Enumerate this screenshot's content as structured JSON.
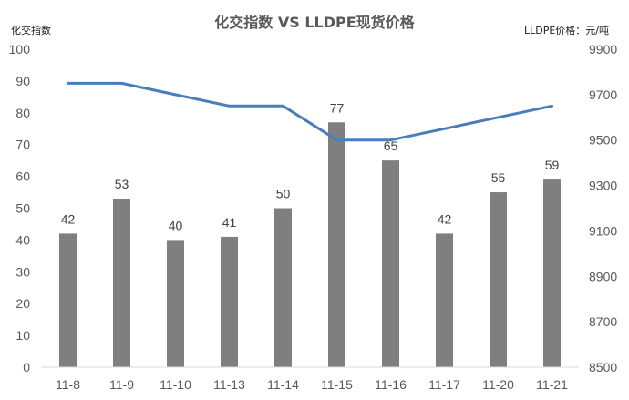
{
  "chart_data": {
    "type": "bar",
    "title": "化交指数 VS LLDPE现货价格",
    "y_left_label": "化交指数",
    "y_right_label": "LLDPE价格：元/吨",
    "categories": [
      "11-8",
      "11-9",
      "11-10",
      "11-13",
      "11-14",
      "11-15",
      "11-16",
      "11-17",
      "11-20",
      "11-21"
    ],
    "y_left_ticks": [
      "0",
      "10",
      "20",
      "30",
      "40",
      "50",
      "60",
      "70",
      "80",
      "90",
      "100"
    ],
    "y_right_ticks": [
      "8500",
      "8700",
      "8900",
      "9100",
      "9300",
      "9500",
      "9700",
      "9900"
    ],
    "ylim_left": [
      0,
      100
    ],
    "ylim_right": [
      8500,
      9900
    ],
    "grid": false,
    "series": [
      {
        "values": [
          42,
          53,
          40,
          41,
          50,
          77,
          65,
          42,
          55,
          59
        ],
        "type": "bar",
        "axis": "left",
        "color": "#7f7f7f",
        "data_labels": [
          "42",
          "53",
          "40",
          "41",
          "50",
          "77",
          "65",
          "42",
          "55",
          "59"
        ]
      },
      {
        "values": [
          9750,
          9750,
          9700,
          9650,
          9650,
          9500,
          9500,
          9550,
          9600,
          9650
        ],
        "type": "line",
        "axis": "right",
        "color": "#4a7ebb"
      }
    ]
  }
}
